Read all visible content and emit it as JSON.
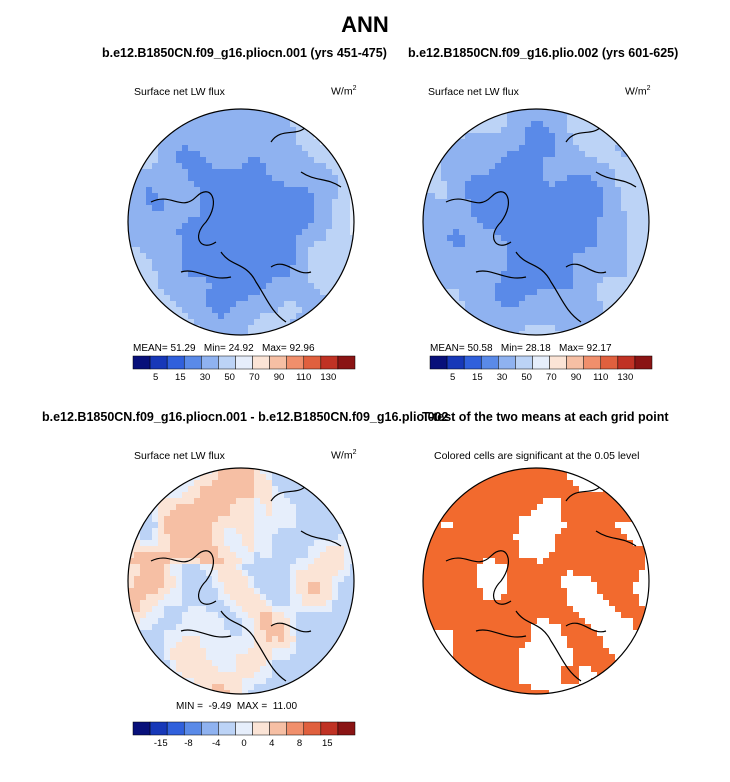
{
  "title": "ANN",
  "colors": {
    "abs_scale": [
      "#08107a",
      "#1738b8",
      "#3060dc",
      "#5a8ae8",
      "#8fb2f0",
      "#bcd3f6",
      "#e6eefb",
      "#fbe4d6",
      "#f6bfa4",
      "#f08f6c",
      "#e0603e",
      "#c03224",
      "#8a1414"
    ],
    "diff_scale": [
      "#08107a",
      "#1738b8",
      "#3060dc",
      "#5a8ae8",
      "#8fb2f0",
      "#bcd3f6",
      "#e6eefb",
      "#fbe4d6",
      "#f6bfa4",
      "#f08f6c",
      "#e0603e",
      "#c03224",
      "#8a1414"
    ],
    "significance": "#f26a2e"
  },
  "chart_data": [
    {
      "type": "heatmap",
      "title": "b.e12.B1850CN.f09_g16.pliocn.001 (yrs 451-475)",
      "variable": "Surface net LW flux",
      "units_base": "W/m",
      "units_exp": "2",
      "projection": "north polar stereographic",
      "stats": {
        "mean_label": "MEAN=",
        "mean": "51.29",
        "min_label": "Min=",
        "min": "24.92",
        "max_label": "Max=",
        "max": "92.96"
      },
      "colorbar_ticks": [
        "5",
        "15",
        "30",
        "50",
        "70",
        "90",
        "110",
        "130"
      ],
      "dominant_levels": [
        3,
        4,
        5
      ]
    },
    {
      "type": "heatmap",
      "title": "b.e12.B1850CN.f09_g16.plio.002 (yrs 601-625)",
      "variable": "Surface net LW flux",
      "units_base": "W/m",
      "units_exp": "2",
      "projection": "north polar stereographic",
      "stats": {
        "mean_label": "MEAN=",
        "mean": "50.58",
        "min_label": "Min=",
        "min": "28.18",
        "max_label": "Max=",
        "max": "92.17"
      },
      "colorbar_ticks": [
        "5",
        "15",
        "30",
        "50",
        "70",
        "90",
        "110",
        "130"
      ],
      "dominant_levels": [
        3,
        4,
        5
      ]
    },
    {
      "type": "heatmap",
      "title": "b.e12.B1850CN.f09_g16.pliocn.001 - b.e12.B1850CN.f09_g16.plio.002",
      "variable": "Surface net LW flux",
      "units_base": "W/m",
      "units_exp": "2",
      "projection": "north polar stereographic",
      "stats": {
        "min_label": "MIN =",
        "min": "-9.49",
        "max_label": "MAX =",
        "max": "11.00"
      },
      "colorbar_ticks": [
        "-15",
        "-8",
        "-4",
        "0",
        "4",
        "8",
        "15"
      ],
      "dominant_levels": [
        5,
        6,
        7,
        8
      ]
    },
    {
      "type": "heatmap",
      "title": "T-test of the two means at each grid point",
      "note": "Colored cells are significant at the 0.05 level",
      "projection": "north polar stereographic"
    }
  ]
}
